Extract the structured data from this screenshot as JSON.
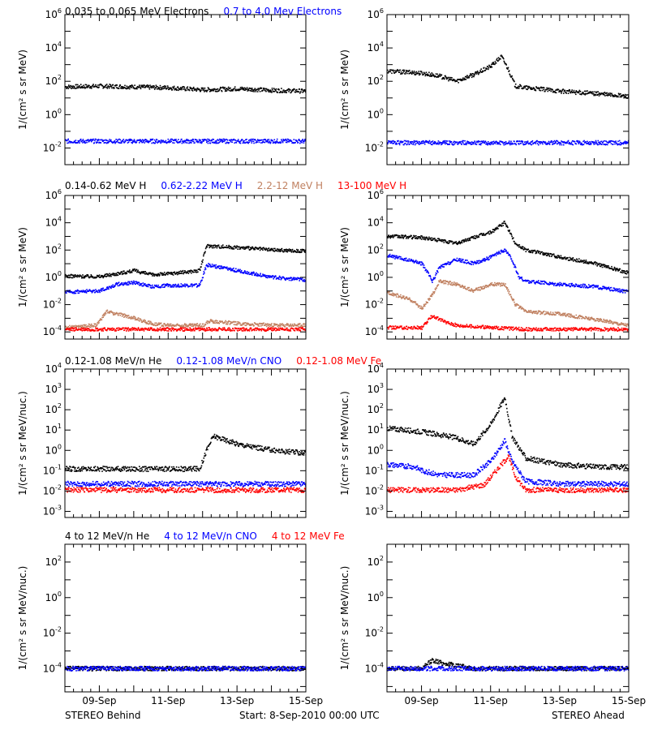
{
  "figure": {
    "footer_left": "STEREO Behind",
    "footer_center": "Start:  8-Sep-2010 00:00 UTC",
    "footer_right": "STEREO Ahead",
    "x_ticks": [
      "09-Sep",
      "11-Sep",
      "13-Sep",
      "15-Sep"
    ],
    "colors": {
      "black": "#000000",
      "blue": "#0000ff",
      "tan": "#c08060",
      "red": "#ff0000"
    }
  },
  "chart_data": [
    {
      "type": "scatter",
      "row": 1,
      "column": "left",
      "spacecraft": "STEREO Behind",
      "ylabel": "1/(cm² s sr MeV)",
      "y_scale": "log",
      "ylim": [
        0.001,
        1000000
      ],
      "y_ticks_exp": [
        -2,
        0,
        2,
        4,
        6
      ],
      "xlim_days": [
        0,
        7
      ],
      "series": [
        {
          "name": "0.035 to 0.065 MeV Electrons",
          "color": "#000000",
          "x": [
            0,
            1,
            2,
            3,
            4,
            5,
            6,
            7
          ],
          "y": [
            45,
            50,
            45,
            40,
            30,
            35,
            28,
            25
          ]
        },
        {
          "name": "0.7 to 4.0 Mev Electrons",
          "color": "#0000ff",
          "x": [
            0,
            1,
            2,
            3,
            4,
            5,
            6,
            7
          ],
          "y": [
            0.025,
            0.025,
            0.025,
            0.025,
            0.025,
            0.025,
            0.025,
            0.025
          ]
        }
      ]
    },
    {
      "type": "scatter",
      "row": 1,
      "column": "right",
      "spacecraft": "STEREO Ahead",
      "ylabel": "1/(cm² s sr MeV)",
      "y_scale": "log",
      "ylim": [
        0.001,
        1000000
      ],
      "y_ticks_exp": [
        -2,
        0,
        2,
        4,
        6
      ],
      "xlim_days": [
        0,
        7
      ],
      "series": [
        {
          "name": "0.035 to 0.065 MeV Electrons",
          "color": "#000000",
          "x": [
            0,
            1,
            1.5,
            2,
            2.6,
            3,
            3.3,
            3.5,
            3.7,
            4,
            5,
            6,
            7
          ],
          "y": [
            400,
            300,
            200,
            100,
            300,
            800,
            3000,
            500,
            50,
            40,
            25,
            18,
            12
          ]
        },
        {
          "name": "0.7 to 4.0 Mev Electrons",
          "color": "#0000ff",
          "x": [
            0,
            1,
            2,
            3,
            4,
            5,
            6,
            7
          ],
          "y": [
            0.02,
            0.02,
            0.02,
            0.02,
            0.02,
            0.02,
            0.02,
            0.02
          ]
        }
      ]
    },
    {
      "type": "scatter",
      "row": 2,
      "column": "left",
      "spacecraft": "STEREO Behind",
      "ylabel": "1/(cm² s sr MeV)",
      "y_scale": "log",
      "ylim": [
        3e-05,
        1000000
      ],
      "y_ticks_exp": [
        -4,
        -2,
        0,
        2,
        4,
        6
      ],
      "xlim_days": [
        0,
        7
      ],
      "series": [
        {
          "name": "0.14-0.62 MeV H",
          "color": "#000000",
          "x": [
            0,
            1,
            1.5,
            2,
            2.5,
            3,
            3.9,
            4.1,
            5,
            6,
            7
          ],
          "y": [
            1.2,
            1.1,
            1.8,
            3,
            1.5,
            1.8,
            3,
            200,
            150,
            100,
            80
          ]
        },
        {
          "name": "0.62-2.22 MeV H",
          "color": "#0000ff",
          "x": [
            0,
            1,
            1.5,
            2,
            2.5,
            3,
            3.9,
            4.1,
            5,
            6,
            7
          ],
          "y": [
            0.08,
            0.1,
            0.3,
            0.4,
            0.2,
            0.25,
            0.25,
            8,
            3,
            1,
            0.6
          ]
        },
        {
          "name": "2.2-12 MeV H",
          "color": "#c08060",
          "x": [
            0,
            0.9,
            1.2,
            1.5,
            2,
            2.5,
            3,
            4,
            4.2,
            5,
            6,
            7
          ],
          "y": [
            0.0002,
            0.0003,
            0.003,
            0.002,
            0.001,
            0.0004,
            0.0003,
            0.0003,
            0.0006,
            0.0004,
            0.0003,
            0.0003
          ]
        },
        {
          "name": "13-100 MeV H",
          "color": "#ff0000",
          "x": [
            0,
            1,
            2,
            3,
            4,
            5,
            6,
            7
          ],
          "y": [
            0.00015,
            0.00015,
            0.00015,
            0.00015,
            0.00015,
            0.00015,
            0.00015,
            0.00015
          ]
        }
      ]
    },
    {
      "type": "scatter",
      "row": 2,
      "column": "right",
      "spacecraft": "STEREO Ahead",
      "ylabel": "1/(cm² s sr MeV)",
      "y_scale": "log",
      "ylim": [
        3e-05,
        1000000
      ],
      "y_ticks_exp": [
        -4,
        -2,
        0,
        2,
        4,
        6
      ],
      "xlim_days": [
        0,
        7
      ],
      "series": [
        {
          "name": "0.14-0.62 MeV H",
          "color": "#000000",
          "x": [
            0,
            1,
            1.5,
            2,
            2.6,
            3,
            3.4,
            3.7,
            4,
            5,
            6,
            7
          ],
          "y": [
            1000,
            800,
            500,
            300,
            1000,
            2000,
            10000,
            300,
            100,
            30,
            10,
            2
          ]
        },
        {
          "name": "0.62-2.22 MeV H",
          "color": "#0000ff",
          "x": [
            0,
            1,
            1.3,
            1.5,
            2,
            2.5,
            3,
            3.4,
            3.6,
            3.8,
            4,
            5,
            6,
            7
          ],
          "y": [
            40,
            10,
            0.5,
            5,
            20,
            10,
            30,
            100,
            20,
            1,
            0.5,
            0.3,
            0.2,
            0.08
          ]
        },
        {
          "name": "2.2-12 MeV H",
          "color": "#c08060",
          "x": [
            0,
            0.7,
            1,
            1.3,
            1.5,
            2,
            2.5,
            3,
            3.4,
            3.7,
            4,
            5,
            6,
            7
          ],
          "y": [
            0.08,
            0.02,
            0.005,
            0.05,
            0.5,
            0.3,
            0.1,
            0.3,
            0.3,
            0.01,
            0.003,
            0.002,
            0.0008,
            0.0003
          ]
        },
        {
          "name": "13-100 MeV H",
          "color": "#ff0000",
          "x": [
            0,
            1,
            1.3,
            1.6,
            2,
            3,
            4,
            5,
            6,
            7
          ],
          "y": [
            0.0002,
            0.0002,
            0.0015,
            0.0006,
            0.0003,
            0.0002,
            0.00015,
            0.00015,
            0.00015,
            0.00015
          ]
        }
      ]
    },
    {
      "type": "scatter",
      "row": 3,
      "column": "left",
      "spacecraft": "STEREO Behind",
      "ylabel": "1/(cm² s sr MeV/nuc.)",
      "y_scale": "log",
      "ylim": [
        0.0005,
        10000
      ],
      "y_ticks_exp": [
        -3,
        -2,
        -1,
        0,
        1,
        2,
        3,
        4
      ],
      "xlim_days": [
        0,
        7
      ],
      "series": [
        {
          "name": "0.12-1.08 MeV/n He",
          "color": "#000000",
          "x": [
            0,
            1,
            2,
            3,
            3.9,
            4.1,
            4.3,
            5,
            6,
            7
          ],
          "y": [
            0.12,
            0.12,
            0.12,
            0.12,
            0.12,
            1,
            5,
            2,
            1,
            0.7
          ]
        },
        {
          "name": "0.12-1.08 MeV/n CNO",
          "color": "#0000ff",
          "x": [
            0,
            1,
            2,
            3,
            4,
            5,
            6,
            7
          ],
          "y": [
            0.022,
            0.022,
            0.022,
            0.022,
            0.022,
            0.022,
            0.022,
            0.022
          ]
        },
        {
          "name": "0.12-1.08 MeV Fe",
          "color": "#ff0000",
          "x": [
            0,
            1,
            2,
            3,
            4,
            5,
            6,
            7
          ],
          "y": [
            0.011,
            0.011,
            0.011,
            0.011,
            0.011,
            0.011,
            0.011,
            0.011
          ]
        }
      ]
    },
    {
      "type": "scatter",
      "row": 3,
      "column": "right",
      "spacecraft": "STEREO Ahead",
      "ylabel": "1/(cm² s sr MeV/nuc.)",
      "y_scale": "log",
      "ylim": [
        0.0005,
        10000
      ],
      "y_ticks_exp": [
        -3,
        -2,
        -1,
        0,
        1,
        2,
        3,
        4
      ],
      "xlim_days": [
        0,
        7
      ],
      "series": [
        {
          "name": "0.12-1.08 MeV/n He",
          "color": "#000000",
          "x": [
            0,
            1,
            2,
            2.5,
            3,
            3.4,
            3.6,
            4,
            5,
            6,
            7
          ],
          "y": [
            12,
            8,
            4,
            2,
            20,
            400,
            5,
            0.4,
            0.2,
            0.15,
            0.15
          ]
        },
        {
          "name": "0.12-1.08 MeV/n CNO",
          "color": "#0000ff",
          "x": [
            0,
            0.8,
            1,
            1.5,
            2.5,
            3,
            3.4,
            3.6,
            4,
            5,
            6,
            7
          ],
          "y": [
            0.2,
            0.15,
            0.1,
            0.06,
            0.06,
            0.3,
            3,
            0.3,
            0.03,
            0.022,
            0.022,
            0.022
          ]
        },
        {
          "name": "0.12-1.08 MeV Fe",
          "color": "#ff0000",
          "x": [
            0,
            2,
            2.8,
            3.3,
            3.5,
            3.7,
            4,
            5,
            6,
            7
          ],
          "y": [
            0.011,
            0.011,
            0.02,
            0.2,
            0.5,
            0.05,
            0.011,
            0.011,
            0.011,
            0.011
          ]
        }
      ]
    },
    {
      "type": "scatter",
      "row": 4,
      "column": "left",
      "spacecraft": "STEREO Behind",
      "ylabel": "1/(cm² s sr MeV/nuc.)",
      "y_scale": "log",
      "ylim": [
        5e-06,
        1000
      ],
      "y_ticks_exp": [
        -4,
        -2,
        0,
        2
      ],
      "xlim_days": [
        0,
        7
      ],
      "series": [
        {
          "name": "4 to 12 MeV/n He",
          "color": "#000000",
          "x": [
            0,
            1,
            2,
            3,
            4,
            5,
            6,
            7
          ],
          "y": [
            0.0001,
            0.0001,
            0.0001,
            0.0001,
            0.0001,
            0.0001,
            0.0001,
            0.0001
          ]
        },
        {
          "name": "4 to 12 MeV/n CNO",
          "color": "#0000ff",
          "x": [
            0,
            1,
            2,
            3,
            4,
            5,
            6,
            7
          ],
          "y": [
            0.0001,
            0.0001,
            0.0001,
            0.0001,
            0.0001,
            0.0001,
            0.0001,
            0.0001
          ]
        },
        {
          "name": "4 to 12 MeV Fe",
          "color": "#ff0000",
          "x": [],
          "y": []
        }
      ]
    },
    {
      "type": "scatter",
      "row": 4,
      "column": "right",
      "spacecraft": "STEREO Ahead",
      "ylabel": "1/(cm² s sr MeV/nuc.)",
      "y_scale": "log",
      "ylim": [
        5e-06,
        1000
      ],
      "y_ticks_exp": [
        -4,
        -2,
        0,
        2
      ],
      "xlim_days": [
        0,
        7
      ],
      "series": [
        {
          "name": "4 to 12 MeV/n He",
          "color": "#000000",
          "x": [
            0,
            1,
            1.3,
            1.6,
            2,
            2.5,
            3,
            4,
            5,
            6,
            7
          ],
          "y": [
            0.0001,
            0.0001,
            0.0003,
            0.0002,
            0.00015,
            0.0001,
            0.0001,
            0.0001,
            0.0001,
            0.0001,
            0.0001
          ]
        },
        {
          "name": "4 to 12 MeV/n CNO",
          "color": "#0000ff",
          "x": [
            0,
            1,
            2,
            3,
            4,
            5,
            6,
            7
          ],
          "y": [
            0.0001,
            0.0001,
            0.0001,
            0.0001,
            0.0001,
            0.0001,
            0.0001,
            0.0001
          ]
        },
        {
          "name": "4 to 12 MeV Fe",
          "color": "#ff0000",
          "x": [],
          "y": []
        }
      ]
    }
  ],
  "legends": [
    [
      {
        "text": "0.035 to 0.065 MeV Electrons",
        "color": "#000000"
      },
      {
        "text": "0.7 to 4.0 Mev Electrons",
        "color": "#0000ff"
      }
    ],
    [
      {
        "text": "0.14-0.62 MeV H",
        "color": "#000000"
      },
      {
        "text": "0.62-2.22 MeV H",
        "color": "#0000ff"
      },
      {
        "text": "2.2-12 MeV H",
        "color": "#c08060"
      },
      {
        "text": "13-100 MeV H",
        "color": "#ff0000"
      }
    ],
    [
      {
        "text": "0.12-1.08 MeV/n He",
        "color": "#000000"
      },
      {
        "text": "0.12-1.08 MeV/n CNO",
        "color": "#0000ff"
      },
      {
        "text": "0.12-1.08 MeV Fe",
        "color": "#ff0000"
      }
    ],
    [
      {
        "text": "4 to 12 MeV/n He",
        "color": "#000000"
      },
      {
        "text": "4 to 12 MeV/n CNO",
        "color": "#0000ff"
      },
      {
        "text": "4 to 12 MeV Fe",
        "color": "#ff0000"
      }
    ]
  ]
}
